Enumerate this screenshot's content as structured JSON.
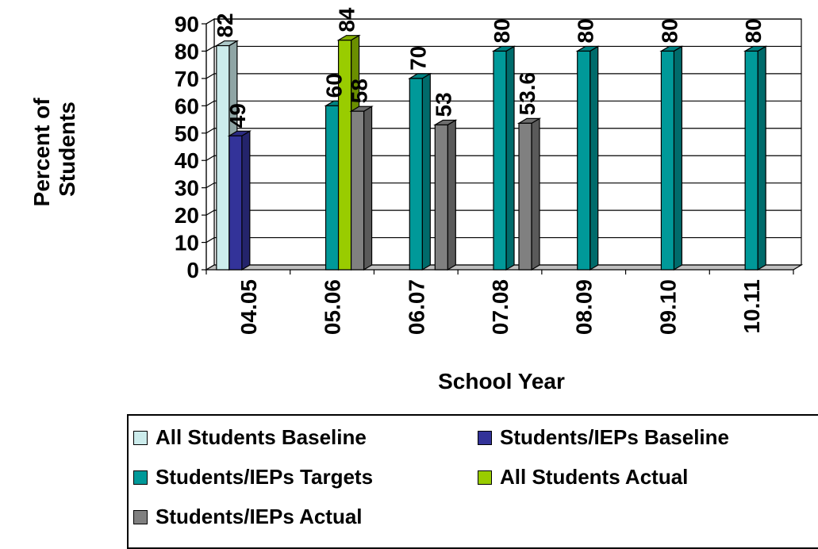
{
  "chart_data": {
    "type": "bar",
    "title": "",
    "xlabel": "School Year",
    "ylabel": "Percent of Students",
    "ylabel_lines": [
      "Percent of",
      "Students"
    ],
    "ylim": [
      0,
      90
    ],
    "yticks": [
      0,
      10,
      20,
      30,
      40,
      50,
      60,
      70,
      80,
      90
    ],
    "grid": true,
    "legend_position": "bottom",
    "categories": [
      "04.05",
      "05.06",
      "06.07",
      "07.08",
      "08.09",
      "09.10",
      "10.11"
    ],
    "series": [
      {
        "name": "All Students Baseline",
        "color": "#CCECEC",
        "values": [
          82,
          null,
          null,
          null,
          null,
          null,
          null
        ],
        "labels": [
          "82",
          null,
          null,
          null,
          null,
          null,
          null
        ]
      },
      {
        "name": "Students/IEPs Baseline",
        "color": "#333399",
        "values": [
          49,
          null,
          null,
          null,
          null,
          null,
          null
        ],
        "labels": [
          "49",
          null,
          null,
          null,
          null,
          null,
          null
        ]
      },
      {
        "name": "Students/IEPs Targets",
        "color": "#009999",
        "values": [
          null,
          60,
          70,
          80,
          80,
          80,
          80
        ],
        "labels": [
          null,
          "60",
          "70",
          "80",
          "80",
          "80",
          "80"
        ]
      },
      {
        "name": "All Students Actual",
        "color": "#99CC00",
        "values": [
          null,
          84,
          null,
          null,
          null,
          null,
          null
        ],
        "labels": [
          null,
          "84",
          null,
          null,
          null,
          null,
          null
        ]
      },
      {
        "name": "Students/IEPs Actual",
        "color": "#808080",
        "values": [
          null,
          58,
          53,
          53.6,
          null,
          null,
          null
        ],
        "labels": [
          null,
          "58",
          "53",
          "53.6",
          null,
          null,
          null
        ]
      }
    ]
  }
}
